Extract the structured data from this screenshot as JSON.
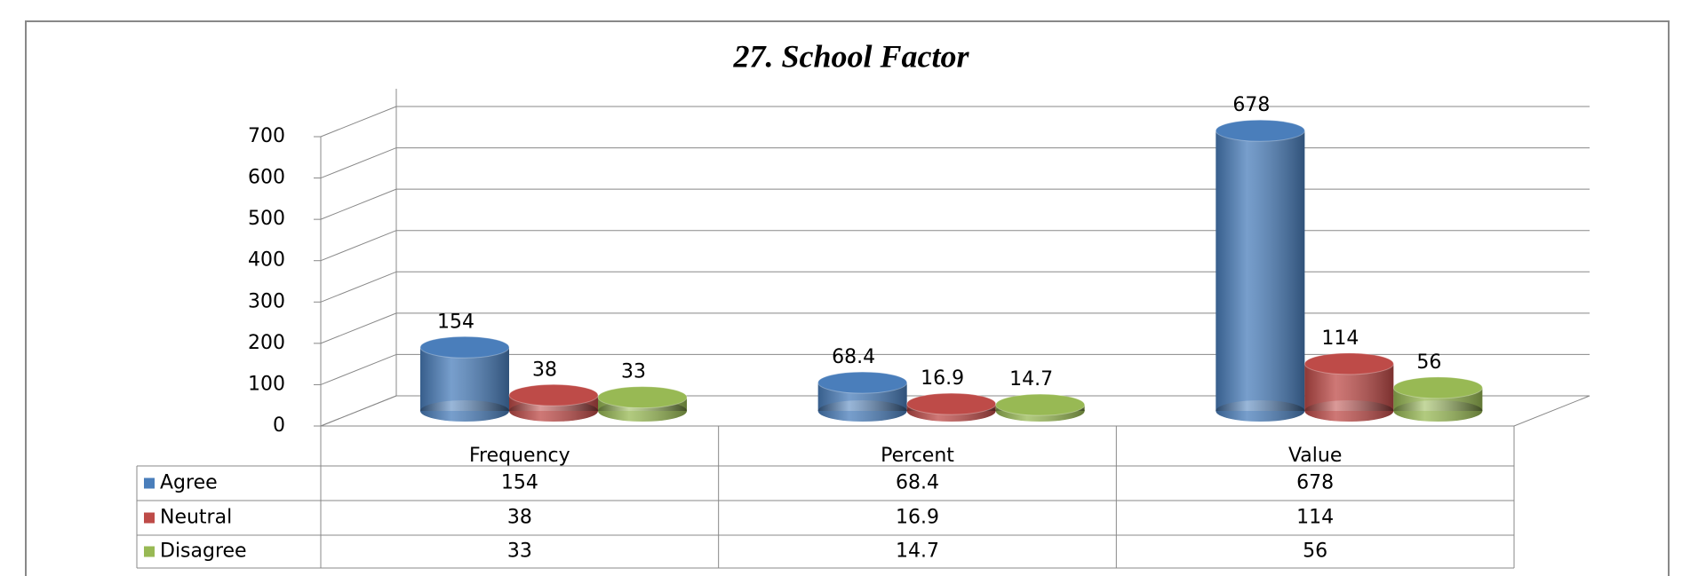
{
  "chart_data": {
    "type": "bar3d",
    "title": "27. School Factor",
    "categories": [
      "Frequency",
      "Percent",
      "Value"
    ],
    "series": [
      {
        "name": "Agree",
        "color": "#4a7ebb",
        "values": [
          154,
          68.4,
          678
        ]
      },
      {
        "name": "Neutral",
        "color": "#be4b48",
        "values": [
          38,
          16.9,
          114
        ]
      },
      {
        "name": "Disagree",
        "color": "#98b954",
        "values": [
          33,
          14.7,
          56
        ]
      }
    ],
    "ylim": [
      0,
      700
    ],
    "yticks": [
      0,
      100,
      200,
      300,
      400,
      500,
      600,
      700
    ],
    "grid": true
  }
}
